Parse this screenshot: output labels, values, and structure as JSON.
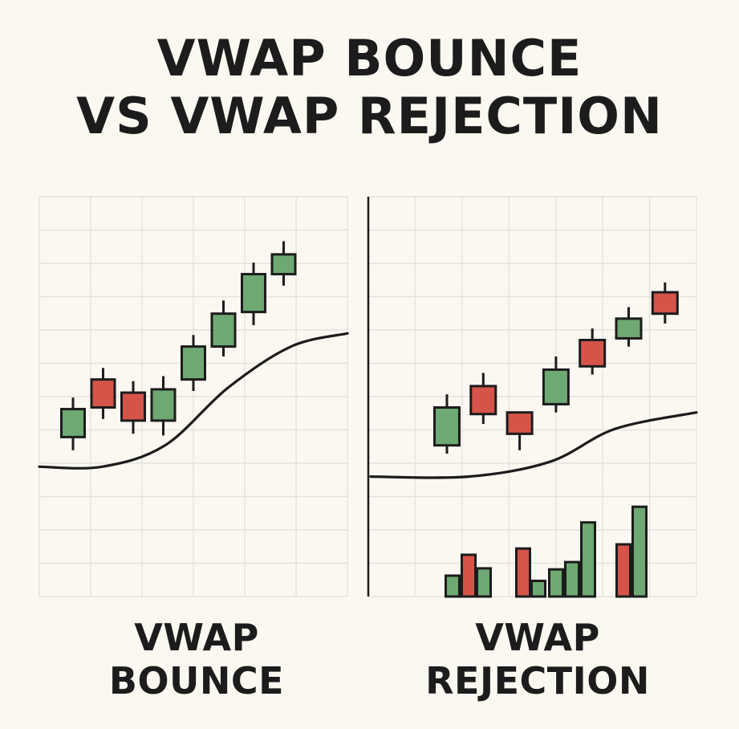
{
  "title": {
    "line1": "VWAP BOUNCE",
    "line2": "VS VWAP REJECTION"
  },
  "panels": [
    {
      "caption_line1": "VWAP",
      "caption_line2": "BOUNCE",
      "candles": [
        {
          "dir": "up",
          "open": 3.2,
          "close": 4.9,
          "high": 5.6,
          "low": 2.4
        },
        {
          "dir": "down",
          "open": 6.7,
          "close": 5.0,
          "high": 7.4,
          "low": 4.3
        },
        {
          "dir": "down",
          "open": 5.9,
          "close": 4.2,
          "high": 6.6,
          "low": 3.4
        },
        {
          "dir": "up",
          "open": 4.2,
          "close": 6.1,
          "high": 6.9,
          "low": 3.3
        },
        {
          "dir": "up",
          "open": 6.7,
          "close": 8.7,
          "high": 9.4,
          "low": 6.0
        },
        {
          "dir": "up",
          "open": 8.7,
          "close": 10.7,
          "high": 11.5,
          "low": 8.1
        },
        {
          "dir": "up",
          "open": 10.8,
          "close": 13.1,
          "high": 13.8,
          "low": 10.0
        },
        {
          "dir": "up",
          "open": 13.1,
          "close": 14.3,
          "high": 15.1,
          "low": 12.4
        }
      ],
      "vwap": [
        [
          0,
          1.4
        ],
        [
          2,
          1.4
        ],
        [
          4,
          2.7
        ],
        [
          6,
          6.2
        ],
        [
          8,
          8.7
        ],
        [
          9.8,
          9.5
        ]
      ],
      "volume": []
    },
    {
      "caption_line1": "VWAP",
      "caption_line2": "REJECTION",
      "candles": [
        {
          "dir": "up",
          "open": 6.6,
          "close": 8.9,
          "high": 9.7,
          "low": 6.1
        },
        {
          "dir": "down",
          "open": 10.2,
          "close": 8.5,
          "high": 11.0,
          "low": 7.9
        },
        {
          "dir": "down",
          "open": 8.6,
          "close": 7.3,
          "high": 8.6,
          "low": 6.3
        },
        {
          "dir": "up",
          "open": 9.1,
          "close": 11.2,
          "high": 12.0,
          "low": 8.6
        },
        {
          "dir": "down",
          "open": 13.0,
          "close": 11.4,
          "high": 13.7,
          "low": 10.9
        },
        {
          "dir": "up",
          "open": 13.1,
          "close": 14.3,
          "high": 15.0,
          "low": 12.6
        },
        {
          "dir": "down",
          "open": 15.9,
          "close": 14.6,
          "high": 16.5,
          "low": 14.0
        }
      ],
      "vwap": [
        [
          0,
          4.7
        ],
        [
          3,
          4.7
        ],
        [
          5.5,
          5.6
        ],
        [
          7.5,
          7.6
        ],
        [
          10,
          8.6
        ]
      ],
      "volume": [
        {
          "dir": "up",
          "value": 2.0
        },
        {
          "dir": "down",
          "value": 4.0
        },
        {
          "dir": "up",
          "value": 2.7
        },
        {
          "dir": "down",
          "value": 4.6
        },
        {
          "dir": "up",
          "value": 1.5
        },
        {
          "dir": "up",
          "value": 2.6
        },
        {
          "dir": "up",
          "value": 3.3
        },
        {
          "dir": "up",
          "value": 7.1
        },
        {
          "dir": "down",
          "value": 5.0
        },
        {
          "dir": "up",
          "value": 8.6
        }
      ]
    }
  ],
  "colors": {
    "background": "#fbf8f1",
    "grid": "#e3e3df",
    "up": "#6ea872",
    "down": "#d5544a",
    "outline": "#1c1c1c"
  }
}
